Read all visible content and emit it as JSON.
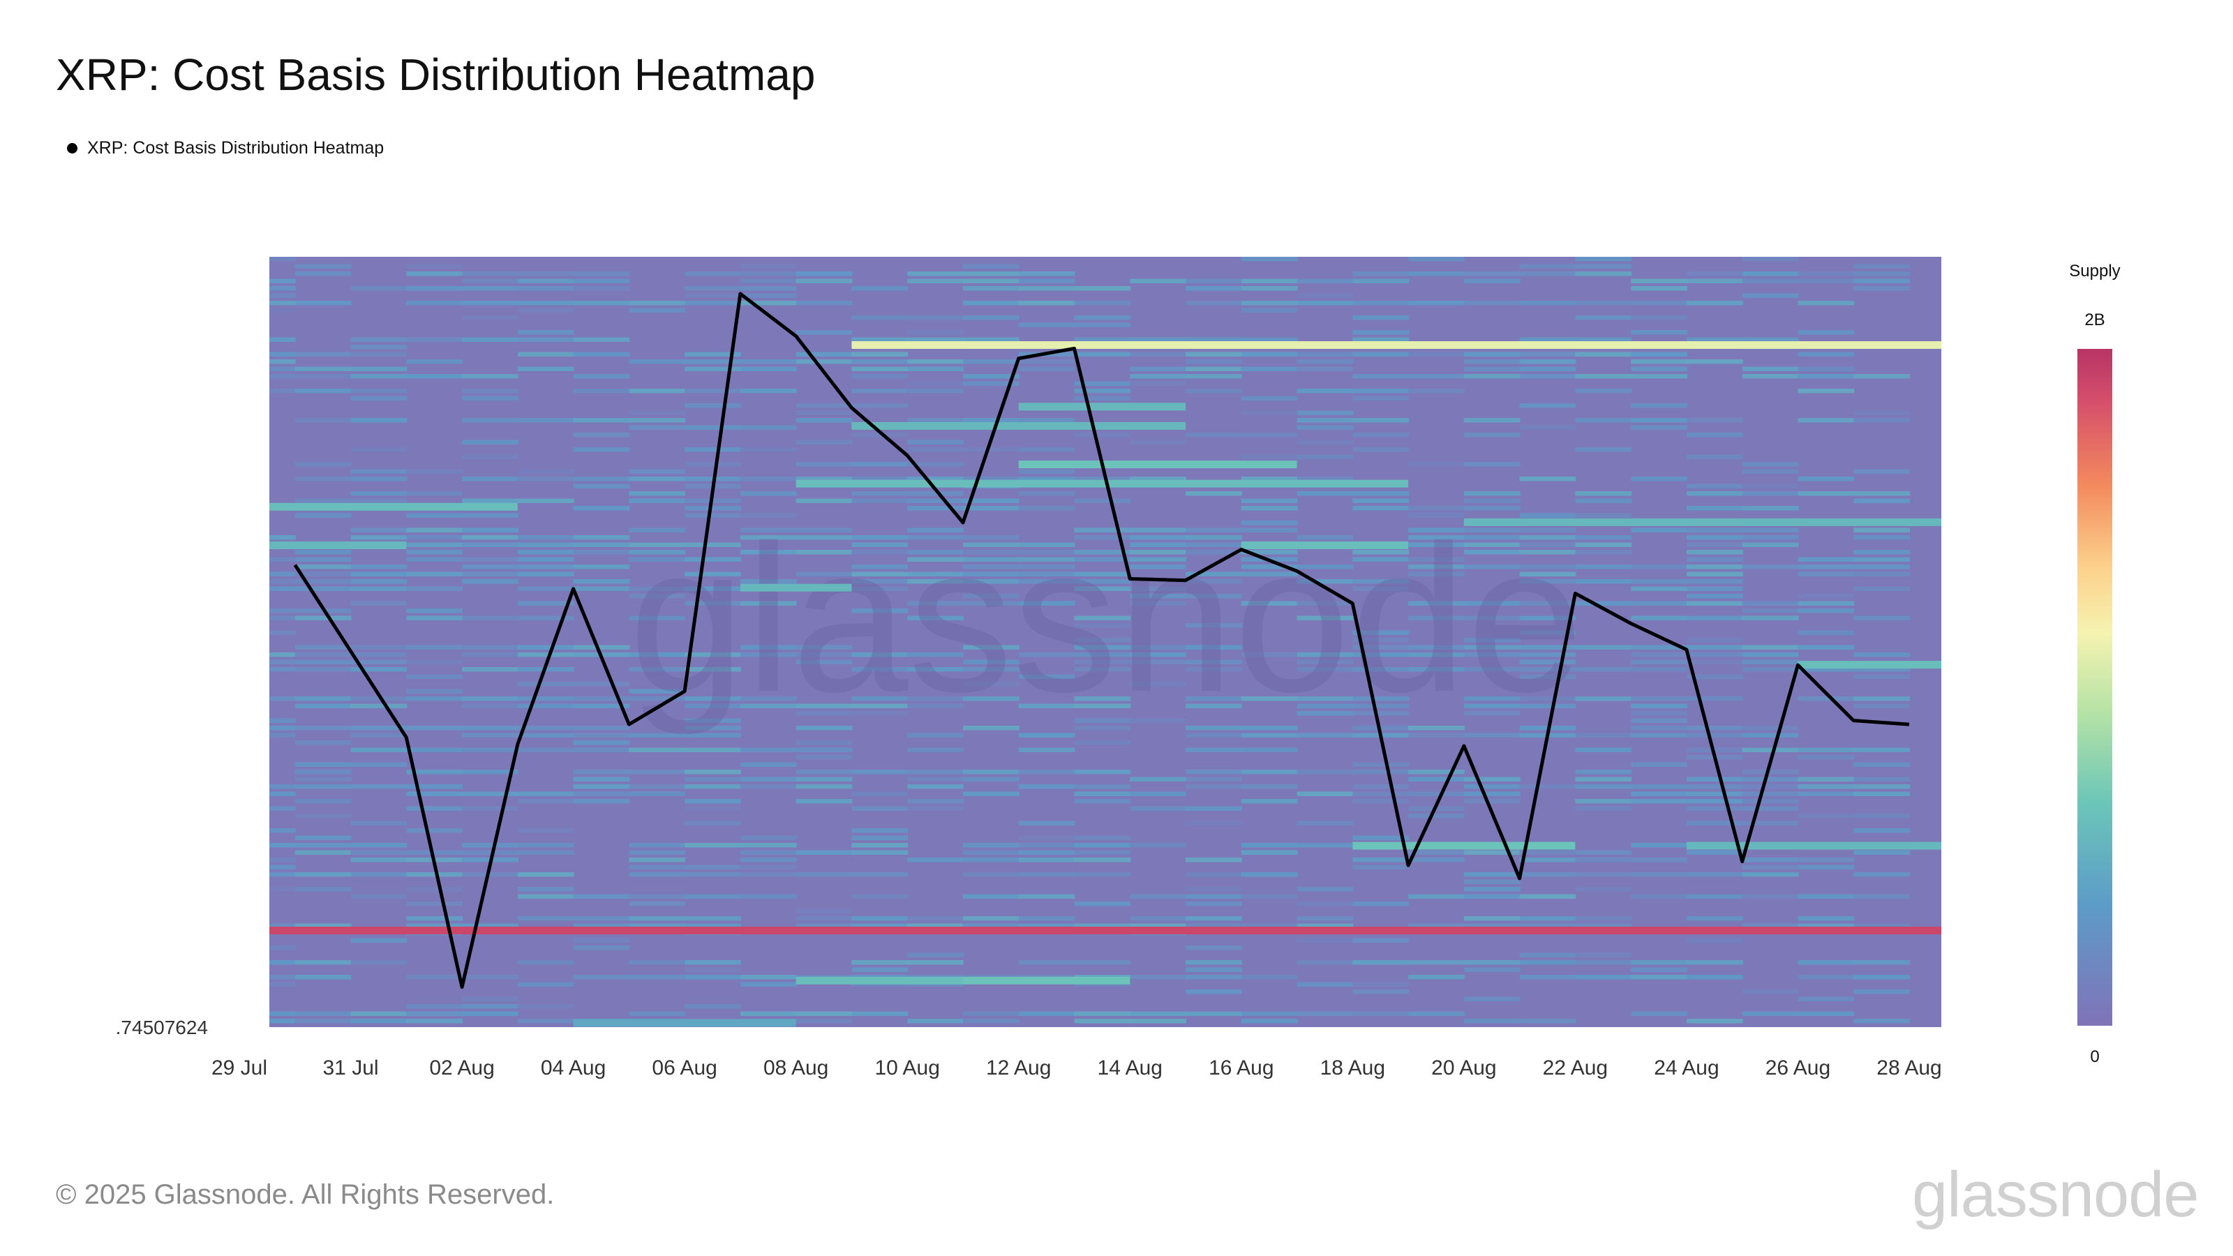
{
  "chart_data": {
    "type": "heatmap",
    "title": "XRP: Cost Basis Distribution Heatmap",
    "legend": [
      "XRP: Cost Basis Distribution Heatmap"
    ],
    "ylabel": "",
    "y_min_label": ".74507624",
    "x_tick_labels": [
      "29 Jul",
      "31 Jul",
      "02 Aug",
      "04 Aug",
      "06 Aug",
      "08 Aug",
      "10 Aug",
      "12 Aug",
      "14 Aug",
      "16 Aug",
      "18 Aug",
      "20 Aug",
      "22 Aug",
      "24 Aug",
      "26 Aug",
      "28 Aug"
    ],
    "colorbar": {
      "label": "Supply",
      "max_label": "2B",
      "min_label": "0",
      "stops": [
        "#8073b8",
        "#5c9cc8",
        "#6cc6b8",
        "#b4e2a6",
        "#f5f3b0",
        "#fcd08a",
        "#f3895e",
        "#d6506b",
        "#b83466"
      ]
    },
    "heatmap_background": "#7d78b8",
    "price_series": {
      "color": "#000000",
      "x": [
        "30 Jul",
        "31 Jul",
        "01 Aug",
        "02 Aug",
        "03 Aug",
        "04 Aug",
        "05 Aug",
        "06 Aug",
        "07 Aug",
        "08 Aug",
        "09 Aug",
        "10 Aug",
        "11 Aug",
        "12 Aug",
        "13 Aug",
        "14 Aug",
        "15 Aug",
        "16 Aug",
        "17 Aug",
        "18 Aug",
        "19 Aug",
        "20 Aug",
        "21 Aug",
        "22 Aug",
        "23 Aug",
        "24 Aug",
        "25 Aug",
        "26 Aug",
        "27 Aug",
        "28 Aug"
      ],
      "values": [
        0.6,
        0.488,
        0.376,
        0.052,
        0.367,
        0.569,
        0.393,
        0.436,
        0.952,
        0.897,
        0.804,
        0.742,
        0.655,
        0.868,
        0.881,
        0.582,
        0.58,
        0.62,
        0.592,
        0.55,
        0.21,
        0.365,
        0.193,
        0.563,
        0.524,
        0.49,
        0.215,
        0.47,
        0.398,
        0.393
      ],
      "value_note": "normalized 0-1 across visible price range"
    },
    "bands": [
      {
        "level": 0.885,
        "start": "09 Aug",
        "end": "28 Aug",
        "intensity": 0.55
      },
      {
        "level": 0.125,
        "start": "29 Jul",
        "end": "28 Aug",
        "intensity": 0.95
      },
      {
        "level": 0.675,
        "start": "29 Jul",
        "end": "02 Aug",
        "intensity": 0.3
      },
      {
        "level": 0.625,
        "start": "29 Jul",
        "end": "31 Jul",
        "intensity": 0.28
      },
      {
        "level": 0.705,
        "start": "08 Aug",
        "end": "18 Aug",
        "intensity": 0.3
      },
      {
        "level": 0.73,
        "start": "12 Aug",
        "end": "16 Aug",
        "intensity": 0.32
      },
      {
        "level": 0.78,
        "start": "09 Aug",
        "end": "14 Aug",
        "intensity": 0.28
      },
      {
        "level": 0.625,
        "start": "16 Aug",
        "end": "18 Aug",
        "intensity": 0.3
      },
      {
        "level": 0.655,
        "start": "20 Aug",
        "end": "28 Aug",
        "intensity": 0.28
      },
      {
        "level": 0.235,
        "start": "18 Aug",
        "end": "21 Aug",
        "intensity": 0.32
      },
      {
        "level": 0.235,
        "start": "24 Aug",
        "end": "28 Aug",
        "intensity": 0.28
      },
      {
        "level": 0.47,
        "start": "26 Aug",
        "end": "28 Aug",
        "intensity": 0.3
      },
      {
        "level": 0.06,
        "start": "08 Aug",
        "end": "10 Aug",
        "intensity": 0.3
      },
      {
        "level": 0.06,
        "start": "11 Aug",
        "end": "13 Aug",
        "intensity": 0.32
      },
      {
        "level": 0.005,
        "start": "04 Aug",
        "end": "07 Aug",
        "intensity": 0.22
      },
      {
        "level": 0.57,
        "start": "07 Aug",
        "end": "08 Aug",
        "intensity": 0.28
      },
      {
        "level": 0.805,
        "start": "12 Aug",
        "end": "14 Aug",
        "intensity": 0.28
      }
    ]
  },
  "footer": {
    "copyright": "© 2025 Glassnode. All Rights Reserved.",
    "logo_text": "glassnode",
    "watermark_text": "glassnode"
  }
}
